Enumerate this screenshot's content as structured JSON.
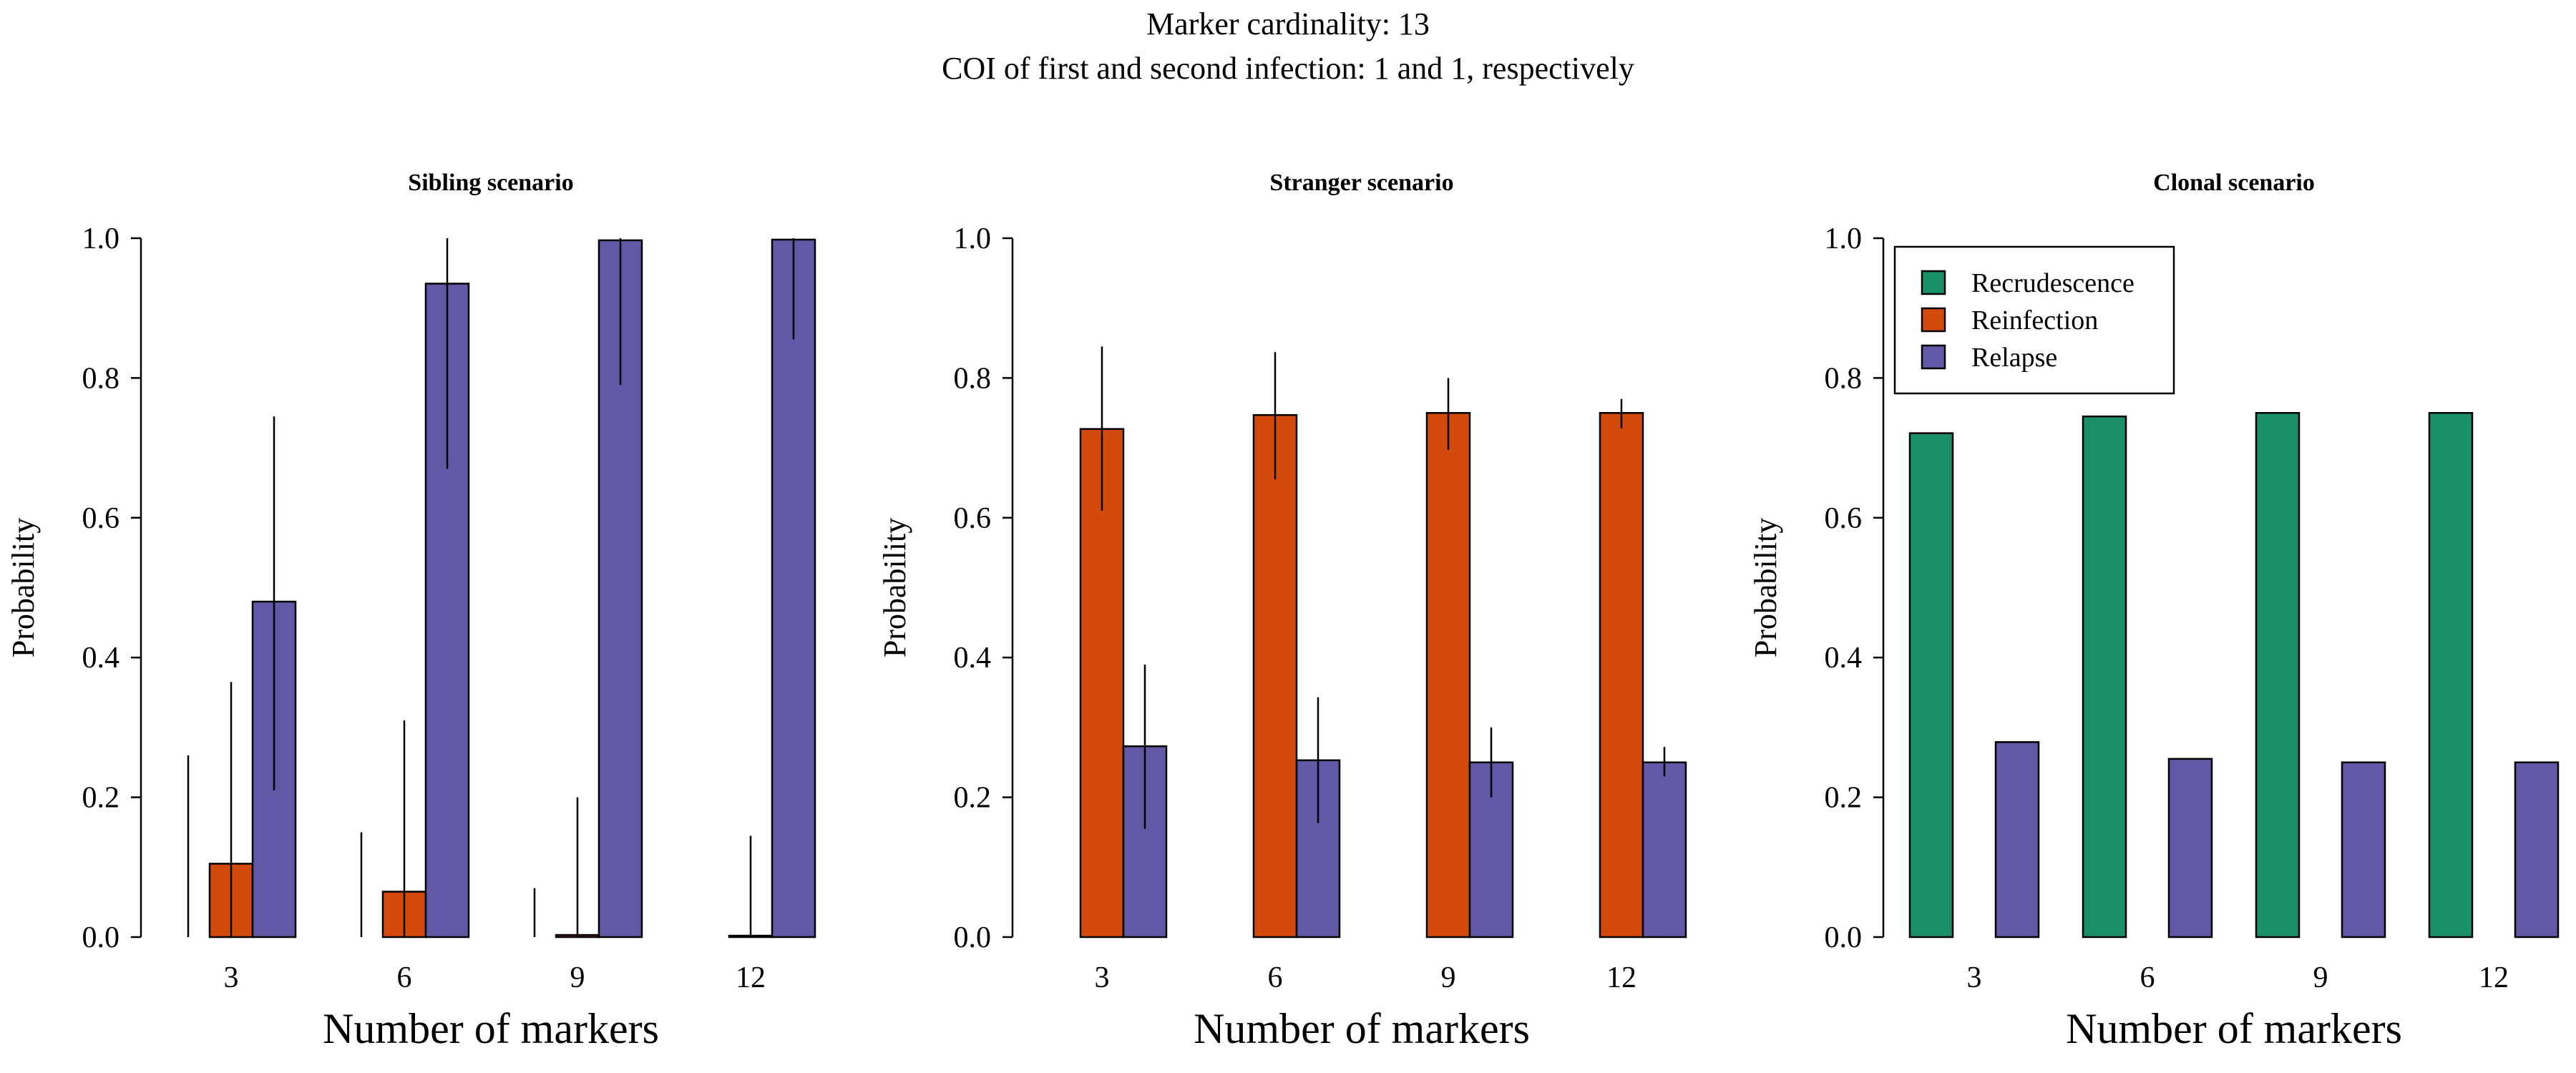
{
  "figure": {
    "title_line1": "Marker cardinality: 13",
    "title_line2": "COI of first and second infection: 1 and 1, respectively"
  },
  "colors": {
    "Recrudescence": "#1b9068",
    "Reinfection": "#d24a0c",
    "Relapse": "#6159a6"
  },
  "legend": {
    "placement": "top-left of third panel",
    "entries": [
      "Recrudescence",
      "Reinfection",
      "Relapse"
    ]
  },
  "chart_data": [
    {
      "type": "bar",
      "title": "Sibling scenario",
      "xlabel": "Number of markers",
      "ylabel": "Probability",
      "ylim": [
        0,
        1
      ],
      "yticks": [
        "0.0",
        "0.2",
        "0.4",
        "0.6",
        "0.8",
        "1.0"
      ],
      "categories": [
        "3",
        "6",
        "9",
        "12"
      ],
      "series": [
        {
          "name": "Recrudescence",
          "values": [
            0.0,
            0.0,
            0.0,
            0.0
          ],
          "err_low": [
            0.0,
            0.0,
            0.0,
            0.0
          ],
          "err_high": [
            0.26,
            0.15,
            0.07,
            0.0
          ]
        },
        {
          "name": "Reinfection",
          "values": [
            0.105,
            0.065,
            0.003,
            0.002
          ],
          "err_low": [
            0.0,
            0.0,
            0.0,
            0.0
          ],
          "err_high": [
            0.365,
            0.31,
            0.2,
            0.145
          ]
        },
        {
          "name": "Relapse",
          "values": [
            0.48,
            0.935,
            0.997,
            0.998
          ],
          "err_low": [
            0.21,
            0.67,
            0.79,
            0.855
          ],
          "err_high": [
            0.745,
            1.0,
            1.0,
            1.0
          ]
        }
      ]
    },
    {
      "type": "bar",
      "title": "Stranger scenario",
      "xlabel": "Number of markers",
      "ylabel": "Probability",
      "ylim": [
        0,
        1
      ],
      "yticks": [
        "0.0",
        "0.2",
        "0.4",
        "0.6",
        "0.8",
        "1.0"
      ],
      "categories": [
        "3",
        "6",
        "9",
        "12"
      ],
      "series": [
        {
          "name": "Recrudescence",
          "values": [
            0.0,
            0.0,
            0.0,
            0.0
          ],
          "err_low": [
            0.0,
            0.0,
            0.0,
            0.0
          ],
          "err_high": [
            0.0,
            0.0,
            0.0,
            0.0
          ]
        },
        {
          "name": "Reinfection",
          "values": [
            0.727,
            0.747,
            0.75,
            0.75
          ],
          "err_low": [
            0.61,
            0.655,
            0.697,
            0.728
          ],
          "err_high": [
            0.845,
            0.837,
            0.8,
            0.77
          ]
        },
        {
          "name": "Relapse",
          "values": [
            0.273,
            0.253,
            0.25,
            0.25
          ],
          "err_low": [
            0.155,
            0.163,
            0.2,
            0.23
          ],
          "err_high": [
            0.39,
            0.343,
            0.3,
            0.272
          ]
        }
      ]
    },
    {
      "type": "bar",
      "title": "Clonal scenario",
      "xlabel": "Number of markers",
      "ylabel": "Probability",
      "ylim": [
        0,
        1
      ],
      "yticks": [
        "0.0",
        "0.2",
        "0.4",
        "0.6",
        "0.8",
        "1.0"
      ],
      "categories": [
        "3",
        "6",
        "9",
        "12"
      ],
      "series": [
        {
          "name": "Recrudescence",
          "values": [
            0.721,
            0.745,
            0.75,
            0.75
          ],
          "err_low": [
            0.721,
            0.745,
            0.75,
            0.75
          ],
          "err_high": [
            0.721,
            0.745,
            0.75,
            0.75
          ]
        },
        {
          "name": "Reinfection",
          "values": [
            0.0,
            0.0,
            0.0,
            0.0
          ],
          "err_low": [
            0.0,
            0.0,
            0.0,
            0.0
          ],
          "err_high": [
            0.0,
            0.0,
            0.0,
            0.0
          ]
        },
        {
          "name": "Relapse",
          "values": [
            0.279,
            0.255,
            0.25,
            0.25
          ],
          "err_low": [
            0.279,
            0.255,
            0.25,
            0.25
          ],
          "err_high": [
            0.279,
            0.255,
            0.25,
            0.25
          ]
        }
      ]
    }
  ]
}
